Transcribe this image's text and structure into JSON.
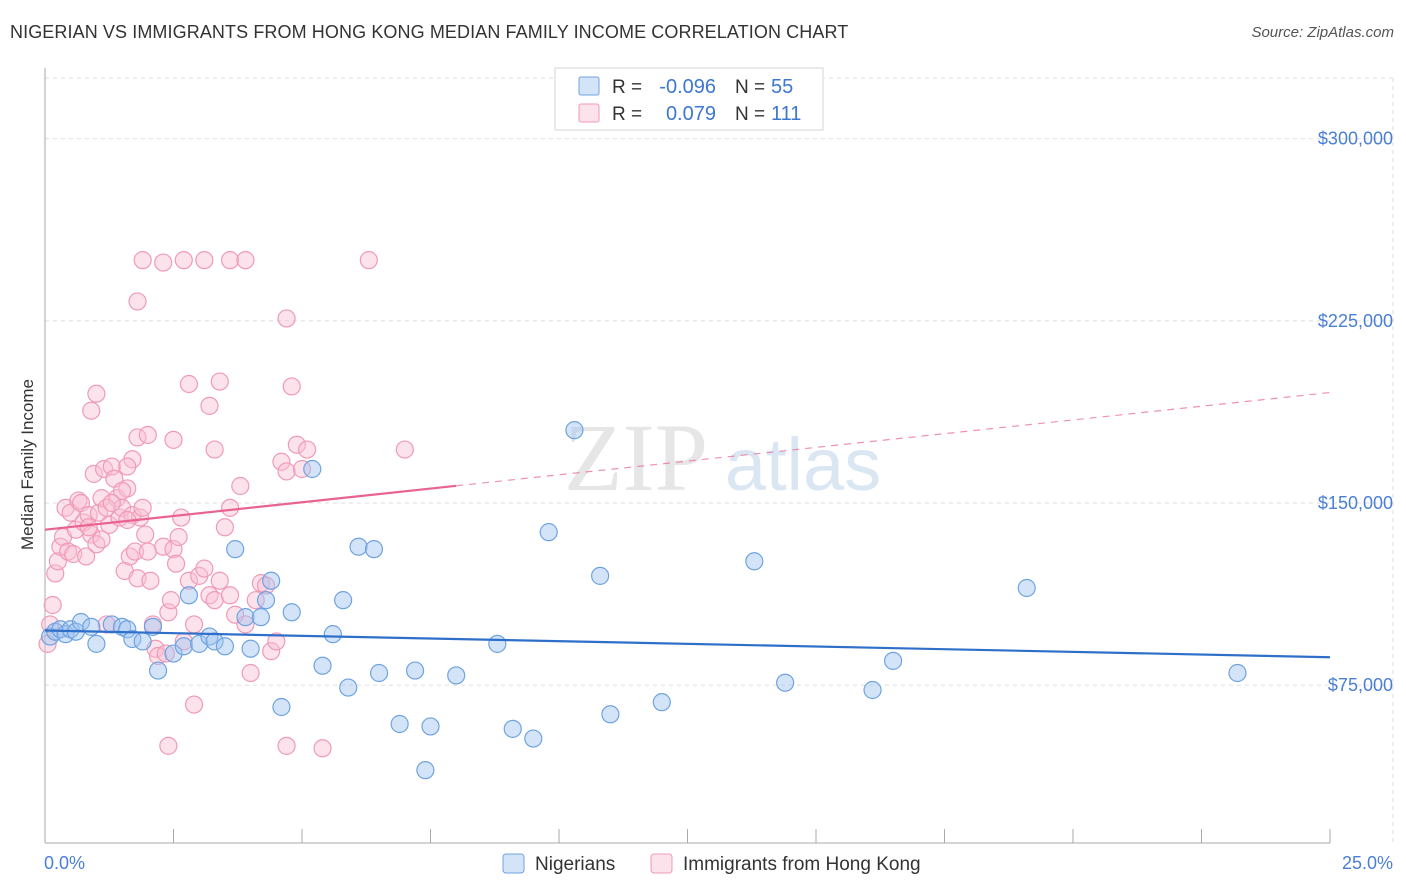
{
  "title": "NIGERIAN VS IMMIGRANTS FROM HONG KONG MEDIAN FAMILY INCOME CORRELATION CHART",
  "source": "Source: ZipAtlas.com",
  "watermark": {
    "zip": "ZIP",
    "atlas": "atlas"
  },
  "chart_data": {
    "type": "scatter",
    "xlabel": "",
    "ylabel": "Median Family Income",
    "xlim": [
      0,
      25
    ],
    "ylim": [
      10000,
      325000
    ],
    "x_tick_labels": [
      "0.0%",
      "25.0%"
    ],
    "y_ticks": [
      75000,
      150000,
      225000,
      300000
    ],
    "y_tick_labels": [
      "$75,000",
      "$150,000",
      "$225,000",
      "$300,000"
    ],
    "grid": true,
    "legend_position": "top-center",
    "stats": [
      {
        "r_label": "R =",
        "r_value": "-0.096",
        "n_label": "N =",
        "n_value": "55"
      },
      {
        "r_label": "R =",
        "r_value": "0.079",
        "n_label": "N =",
        "n_value": "111"
      }
    ],
    "series": [
      {
        "name": "Nigerians",
        "color": "#6fa3e0",
        "fill": "rgba(160,196,240,0.45)",
        "trend_color": "#2e6fc9",
        "trend": {
          "x0": 0,
          "y0": 97500,
          "x1": 25,
          "y1": 86500,
          "dashed_from": null
        },
        "points": [
          [
            0.1,
            95
          ],
          [
            0.2,
            97
          ],
          [
            0.3,
            98
          ],
          [
            0.4,
            96
          ],
          [
            0.5,
            98
          ],
          [
            0.6,
            97
          ],
          [
            0.7,
            101
          ],
          [
            0.9,
            99
          ],
          [
            1.0,
            92
          ],
          [
            1.3,
            100
          ],
          [
            1.5,
            99
          ],
          [
            1.6,
            98
          ],
          [
            1.7,
            94
          ],
          [
            1.9,
            93
          ],
          [
            2.1,
            99
          ],
          [
            2.2,
            81
          ],
          [
            2.5,
            88
          ],
          [
            2.7,
            91
          ],
          [
            2.8,
            112
          ],
          [
            3.0,
            92
          ],
          [
            3.2,
            95
          ],
          [
            3.3,
            93
          ],
          [
            3.5,
            91
          ],
          [
            3.7,
            131
          ],
          [
            3.9,
            103
          ],
          [
            4.0,
            90
          ],
          [
            4.2,
            103
          ],
          [
            4.3,
            110
          ],
          [
            4.4,
            118
          ],
          [
            4.6,
            66
          ],
          [
            4.8,
            105
          ],
          [
            5.2,
            164
          ],
          [
            5.4,
            83
          ],
          [
            5.6,
            96
          ],
          [
            5.8,
            110
          ],
          [
            5.9,
            74
          ],
          [
            6.1,
            132
          ],
          [
            6.4,
            131
          ],
          [
            6.5,
            80
          ],
          [
            6.9,
            59
          ],
          [
            7.2,
            81
          ],
          [
            7.4,
            40
          ],
          [
            7.5,
            58
          ],
          [
            8.0,
            79
          ],
          [
            8.8,
            92
          ],
          [
            9.1,
            57
          ],
          [
            9.5,
            53
          ],
          [
            9.8,
            138
          ],
          [
            10.3,
            180
          ],
          [
            10.8,
            120
          ],
          [
            11.0,
            63
          ],
          [
            12.0,
            68
          ],
          [
            13.8,
            126
          ],
          [
            14.4,
            76
          ],
          [
            16.1,
            73
          ],
          [
            16.5,
            85
          ],
          [
            19.1,
            115
          ],
          [
            23.2,
            80
          ]
        ]
      },
      {
        "name": "Immigrants from Hong Kong",
        "color": "#f09ab8",
        "fill": "rgba(248,190,210,0.45)",
        "trend_color": "#e8648f",
        "trend": {
          "x0": 0,
          "y0": 139000,
          "x1": 25,
          "y1": 195500,
          "dashed_from": 8
        },
        "points": [
          [
            0.05,
            92
          ],
          [
            0.1,
            100
          ],
          [
            0.15,
            108
          ],
          [
            0.2,
            121
          ],
          [
            0.25,
            126
          ],
          [
            0.3,
            132
          ],
          [
            0.35,
            136
          ],
          [
            0.4,
            148
          ],
          [
            0.45,
            130
          ],
          [
            0.5,
            146
          ],
          [
            0.55,
            129
          ],
          [
            0.6,
            139
          ],
          [
            0.65,
            151
          ],
          [
            0.7,
            150
          ],
          [
            0.75,
            142
          ],
          [
            0.8,
            128
          ],
          [
            0.85,
            145
          ],
          [
            0.9,
            137
          ],
          [
            0.95,
            162
          ],
          [
            1.0,
            133
          ],
          [
            1.05,
            146
          ],
          [
            1.1,
            152
          ],
          [
            1.15,
            164
          ],
          [
            1.2,
            100
          ],
          [
            1.25,
            141
          ],
          [
            1.3,
            165
          ],
          [
            1.35,
            160
          ],
          [
            1.4,
            152
          ],
          [
            1.45,
            144
          ],
          [
            1.5,
            148
          ],
          [
            1.55,
            122
          ],
          [
            1.6,
            156
          ],
          [
            1.65,
            128
          ],
          [
            1.7,
            145
          ],
          [
            1.75,
            130
          ],
          [
            1.8,
            119
          ],
          [
            1.85,
            144
          ],
          [
            1.9,
            148
          ],
          [
            1.95,
            137
          ],
          [
            2.0,
            130
          ],
          [
            2.05,
            118
          ],
          [
            2.1,
            100
          ],
          [
            2.15,
            90
          ],
          [
            2.2,
            87
          ],
          [
            2.3,
            132
          ],
          [
            2.35,
            88
          ],
          [
            2.4,
            105
          ],
          [
            2.45,
            110
          ],
          [
            2.5,
            131
          ],
          [
            2.55,
            125
          ],
          [
            2.6,
            136
          ],
          [
            2.65,
            144
          ],
          [
            2.7,
            93
          ],
          [
            2.8,
            118
          ],
          [
            2.9,
            100
          ],
          [
            3.0,
            120
          ],
          [
            3.1,
            123
          ],
          [
            3.2,
            112
          ],
          [
            3.3,
            110
          ],
          [
            3.4,
            118
          ],
          [
            3.5,
            140
          ],
          [
            3.6,
            112
          ],
          [
            3.7,
            104
          ],
          [
            3.8,
            157
          ],
          [
            3.9,
            100
          ],
          [
            4.0,
            80
          ],
          [
            4.1,
            110
          ],
          [
            4.2,
            117
          ],
          [
            4.3,
            116
          ],
          [
            4.4,
            89
          ],
          [
            4.5,
            93
          ],
          [
            4.6,
            167
          ],
          [
            4.7,
            163
          ],
          [
            4.8,
            198
          ],
          [
            4.9,
            174
          ],
          [
            5.0,
            164
          ],
          [
            5.1,
            172
          ],
          [
            1.0,
            195
          ],
          [
            0.9,
            188
          ],
          [
            1.7,
            168
          ],
          [
            1.8,
            177
          ],
          [
            2.0,
            178
          ],
          [
            2.5,
            176
          ],
          [
            2.8,
            199
          ],
          [
            3.2,
            190
          ],
          [
            3.3,
            172
          ],
          [
            3.4,
            200
          ],
          [
            3.6,
            148
          ],
          [
            0.85,
            140
          ],
          [
            1.2,
            148
          ],
          [
            1.5,
            155
          ],
          [
            1.6,
            143
          ],
          [
            1.1,
            135
          ],
          [
            1.3,
            150
          ],
          [
            4.7,
            226
          ],
          [
            1.8,
            233
          ],
          [
            1.9,
            250
          ],
          [
            2.3,
            249
          ],
          [
            2.7,
            250
          ],
          [
            3.1,
            250
          ],
          [
            3.6,
            250
          ],
          [
            3.9,
            250
          ],
          [
            6.3,
            250
          ],
          [
            2.4,
            50
          ],
          [
            4.7,
            50
          ],
          [
            5.4,
            49
          ],
          [
            2.9,
            67
          ],
          [
            7.0,
            172
          ],
          [
            1.6,
            165
          ]
        ]
      }
    ]
  }
}
